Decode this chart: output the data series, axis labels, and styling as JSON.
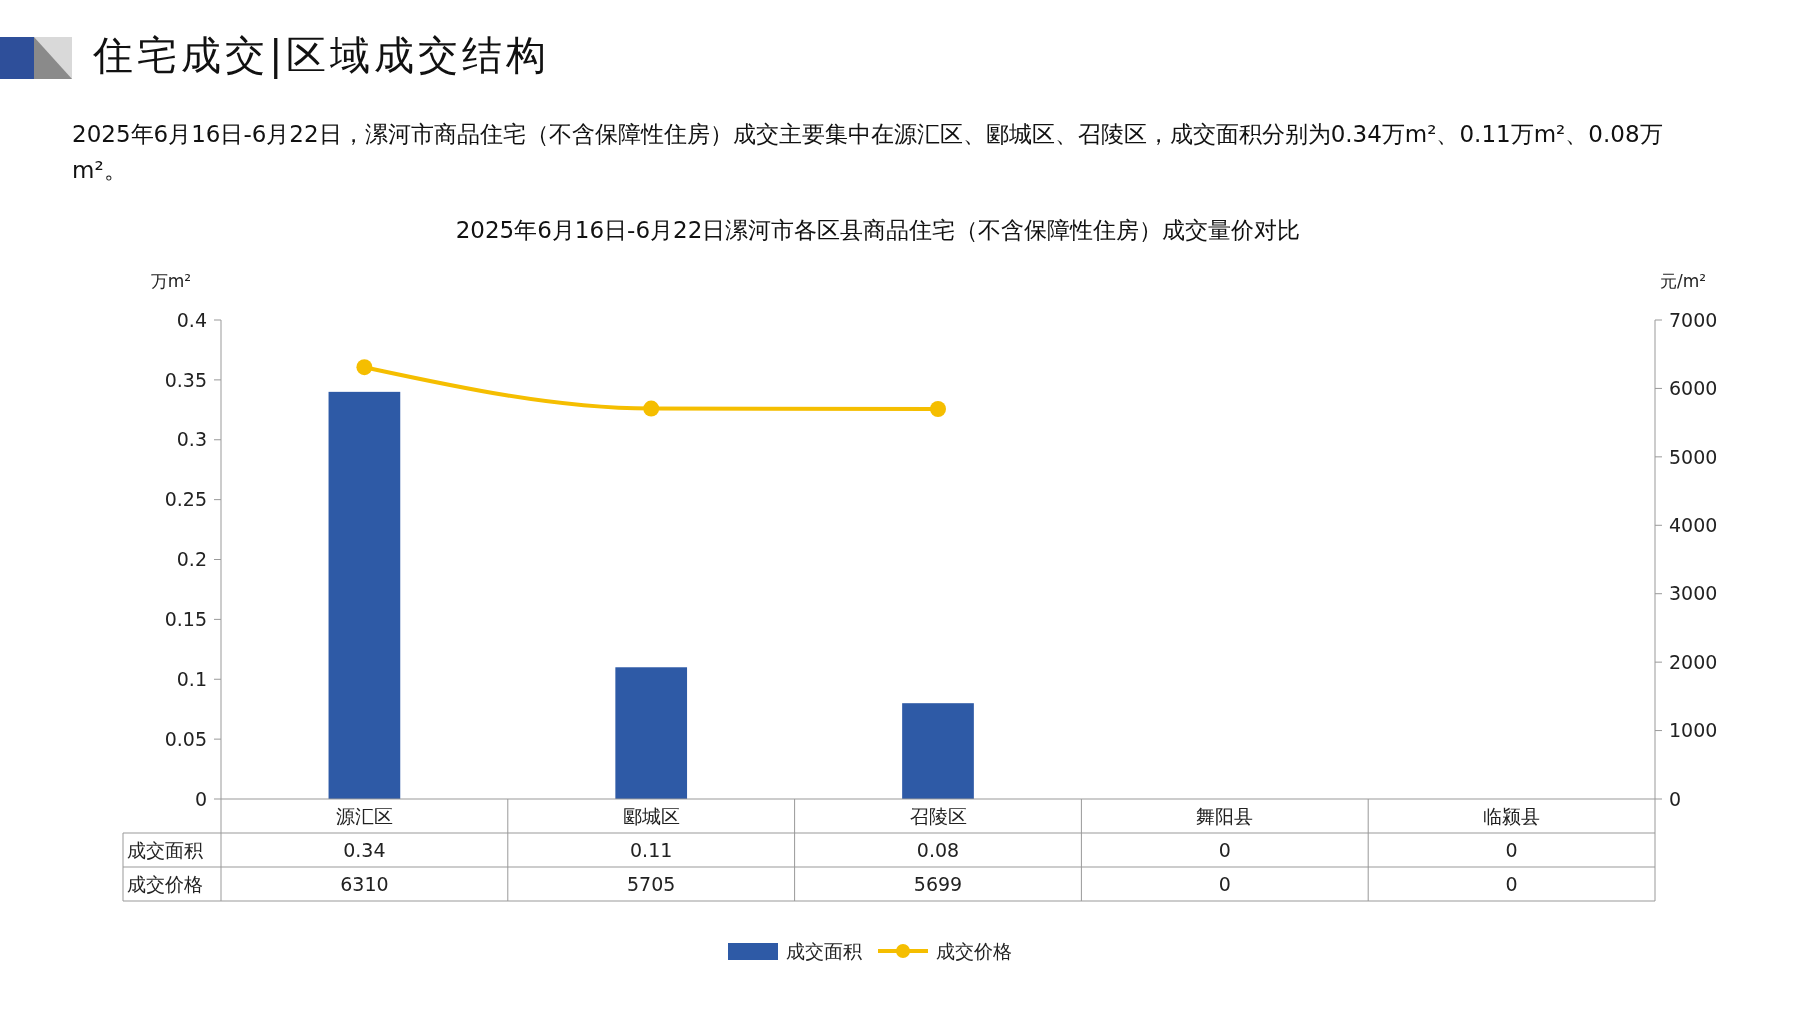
{
  "chart_data": {
    "type": "bar",
    "title": "2025年6月16日-6月22日漯河市各区县商品住宅（不含保障性住房）成交量价对比",
    "annotations": [
      "住宅成交|区域成交结构",
      "2025年6月16日-6月22日，漯河市商品住宅（不含保障性住房）成交主要集中在源汇区、郾城区、召陵区，成交面积分别为0.34万m²、0.11万m²、0.08万m²。"
    ],
    "ylabel": "万m²",
    "y2label": "元/m²",
    "categories": [
      "源汇区",
      "郾城区",
      "召陵区",
      "舞阳县",
      "临颍县"
    ],
    "series": [
      {
        "name": "成交面积",
        "color": "#2e5aa6",
        "values": [
          0.34,
          0.11,
          0.08,
          0,
          0
        ],
        "value_labels": [
          "0.34",
          "0.11",
          "0.08",
          "0",
          "0"
        ]
      },
      {
        "name": "成交价格",
        "type": "line",
        "axis": "y2",
        "color": "#f5be00",
        "values": [
          6310,
          5705,
          5699,
          null,
          null
        ],
        "value_labels": [
          "6310",
          "5705",
          "5699",
          "0",
          "0"
        ]
      }
    ],
    "ylim": [
      0,
      0.4
    ],
    "yticks": [
      0,
      0.05,
      0.1,
      0.15,
      0.2,
      0.25,
      0.3,
      0.35,
      0.4
    ],
    "y2lim": [
      0,
      7000
    ],
    "y2ticks": [
      0,
      1000,
      2000,
      3000,
      4000,
      5000,
      6000,
      7000
    ],
    "marker": "circle",
    "legend": "bottom",
    "grid": false
  }
}
